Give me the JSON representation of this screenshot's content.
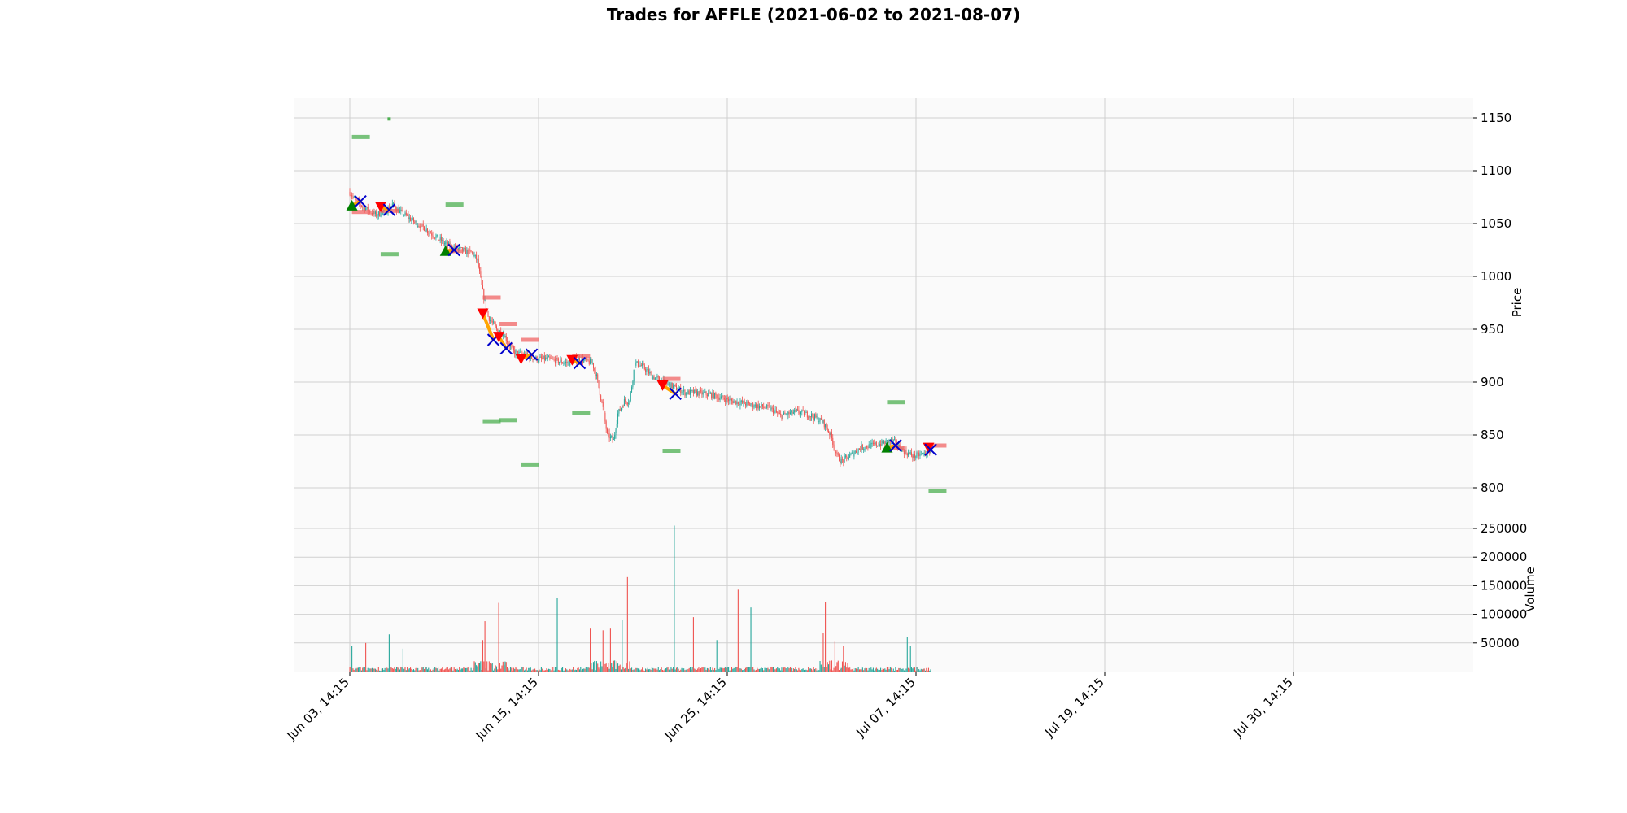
{
  "chart_data": [
    {
      "type": "candlestick",
      "panel": "price",
      "title": "Trades for AFFLE (2021-06-02 to 2021-08-07)",
      "ylabel": "Price",
      "ylim": [
        780,
        1170
      ],
      "yticks": [
        800,
        850,
        900,
        950,
        1000,
        1050,
        1100,
        1150
      ],
      "x_tick_labels": [
        "Jun 03, 14:15",
        "Jun 15, 14:15",
        "Jun 25, 14:15",
        "Jul 07, 14:15",
        "Jul 19, 14:15",
        "Jul 30, 14:15"
      ],
      "grid": true,
      "colors": {
        "up": "#26a69a",
        "down": "#ef5350",
        "entry_long": "#008000",
        "entry_short": "#ff0000",
        "exit": "#0000cc",
        "path": "#ffa500",
        "target": "#4caf50",
        "stop": "#f06464"
      },
      "price_path": [
        [
          0,
          1080
        ],
        [
          5,
          1072
        ],
        [
          10,
          1068
        ],
        [
          18,
          1062
        ],
        [
          25,
          1058
        ],
        [
          35,
          1063
        ],
        [
          40,
          1068
        ],
        [
          45,
          1063
        ],
        [
          52,
          1058
        ],
        [
          60,
          1052
        ],
        [
          70,
          1046
        ],
        [
          80,
          1038
        ],
        [
          88,
          1032
        ],
        [
          95,
          1028
        ],
        [
          105,
          1025
        ],
        [
          115,
          1022
        ],
        [
          120,
          1015
        ],
        [
          125,
          985
        ],
        [
          130,
          962
        ],
        [
          138,
          950
        ],
        [
          145,
          945
        ],
        [
          150,
          935
        ],
        [
          155,
          928
        ],
        [
          165,
          925
        ],
        [
          175,
          922
        ],
        [
          185,
          922
        ],
        [
          195,
          920
        ],
        [
          205,
          918
        ],
        [
          215,
          922
        ],
        [
          228,
          918
        ],
        [
          232,
          905
        ],
        [
          238,
          875
        ],
        [
          242,
          850
        ],
        [
          248,
          845
        ],
        [
          252,
          870
        ],
        [
          258,
          882
        ],
        [
          263,
          882
        ],
        [
          268,
          918
        ],
        [
          275,
          915
        ],
        [
          285,
          905
        ],
        [
          295,
          900
        ],
        [
          305,
          895
        ],
        [
          315,
          890
        ],
        [
          325,
          890
        ],
        [
          340,
          888
        ],
        [
          360,
          882
        ],
        [
          380,
          878
        ],
        [
          395,
          875
        ],
        [
          405,
          868
        ],
        [
          420,
          872
        ],
        [
          435,
          868
        ],
        [
          445,
          862
        ],
        [
          452,
          850
        ],
        [
          458,
          830
        ],
        [
          462,
          825
        ],
        [
          470,
          830
        ],
        [
          480,
          838
        ],
        [
          490,
          840
        ],
        [
          500,
          842
        ],
        [
          510,
          845
        ],
        [
          520,
          835
        ],
        [
          530,
          830
        ],
        [
          540,
          832
        ],
        [
          546,
          836
        ]
      ],
      "trades": [
        {
          "dir": "long",
          "entry_x": 2,
          "entry_price": 1067,
          "exit_x": 10,
          "exit_price": 1071,
          "target": 1132,
          "stop": 1061
        },
        {
          "dir": "short",
          "entry_x": 29,
          "entry_price": 1066,
          "exit_x": 37,
          "exit_price": 1063,
          "target": 1021,
          "stop": 1062
        },
        {
          "dir": "long",
          "entry_x": 90,
          "entry_price": 1024,
          "exit_x": 98,
          "exit_price": 1025,
          "target": 1068,
          "stop": 1024
        },
        {
          "dir": "short",
          "entry_x": 125,
          "entry_price": 965,
          "exit_x": 135,
          "exit_price": 940,
          "target": 863,
          "stop": 980
        },
        {
          "dir": "short",
          "entry_x": 140,
          "entry_price": 943,
          "exit_x": 147,
          "exit_price": 932,
          "target": 864,
          "stop": 955
        },
        {
          "dir": "short",
          "entry_x": 161,
          "entry_price": 922,
          "exit_x": 171,
          "exit_price": 926,
          "target": 822,
          "stop": 940
        },
        {
          "dir": "short",
          "entry_x": 209,
          "entry_price": 921,
          "exit_x": 216,
          "exit_price": 918,
          "target": 871,
          "stop": 925
        },
        {
          "dir": "short",
          "entry_x": 294,
          "entry_price": 897,
          "exit_x": 306,
          "exit_price": 889,
          "target": 835,
          "stop": 903
        },
        {
          "dir": "long",
          "entry_x": 505,
          "entry_price": 838,
          "exit_x": 513,
          "exit_price": 840,
          "target": 881,
          "stop": 838
        },
        {
          "dir": "short",
          "entry_x": 544,
          "entry_price": 838,
          "exit_x": 546,
          "exit_price": 836,
          "target": 797,
          "stop": 840
        }
      ],
      "isolated_marks": [
        {
          "x": 37,
          "price": 1149
        }
      ]
    },
    {
      "type": "bar",
      "panel": "volume",
      "ylabel": "Volume",
      "ylim": [
        0,
        275000
      ],
      "yticks": [
        50000,
        100000,
        150000,
        200000,
        250000
      ],
      "spikes": [
        {
          "x": 2,
          "value": 45000,
          "dir": "up"
        },
        {
          "x": 15,
          "value": 50000,
          "dir": "down"
        },
        {
          "x": 37,
          "value": 65000,
          "dir": "up"
        },
        {
          "x": 50,
          "value": 40000,
          "dir": "up"
        },
        {
          "x": 125,
          "value": 55000,
          "dir": "down"
        },
        {
          "x": 127,
          "value": 88000,
          "dir": "down"
        },
        {
          "x": 140,
          "value": 120000,
          "dir": "down"
        },
        {
          "x": 195,
          "value": 128000,
          "dir": "up"
        },
        {
          "x": 226,
          "value": 75000,
          "dir": "down"
        },
        {
          "x": 238,
          "value": 72000,
          "dir": "down"
        },
        {
          "x": 245,
          "value": 75000,
          "dir": "down"
        },
        {
          "x": 256,
          "value": 90000,
          "dir": "up"
        },
        {
          "x": 261,
          "value": 165000,
          "dir": "down"
        },
        {
          "x": 305,
          "value": 255000,
          "dir": "up"
        },
        {
          "x": 323,
          "value": 95000,
          "dir": "down"
        },
        {
          "x": 345,
          "value": 55000,
          "dir": "up"
        },
        {
          "x": 365,
          "value": 143000,
          "dir": "down"
        },
        {
          "x": 377,
          "value": 112000,
          "dir": "up"
        },
        {
          "x": 445,
          "value": 68000,
          "dir": "down"
        },
        {
          "x": 447,
          "value": 122000,
          "dir": "down"
        },
        {
          "x": 456,
          "value": 52000,
          "dir": "down"
        },
        {
          "x": 464,
          "value": 45000,
          "dir": "down"
        },
        {
          "x": 524,
          "value": 60000,
          "dir": "up"
        },
        {
          "x": 527,
          "value": 45000,
          "dir": "up"
        }
      ]
    }
  ]
}
